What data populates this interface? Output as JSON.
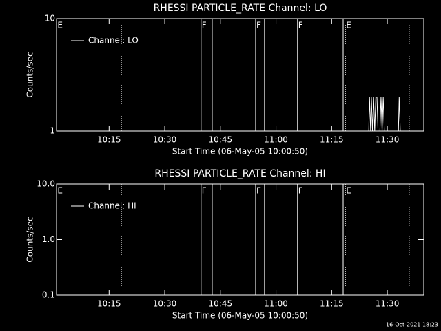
{
  "chart_data": [
    {
      "type": "line",
      "title": "RHESSI PARTICLE_RATE Channel: LO",
      "xlabel": "Start Time (06-May-05 10:00:50)",
      "ylabel": "Counts/sec",
      "log_y": true,
      "ylim": [
        1,
        10
      ],
      "yticks": [
        1,
        10
      ],
      "xlim": [
        0.83,
        99.83
      ],
      "xticks": [
        {
          "value": 15,
          "label": "10:15"
        },
        {
          "value": 30,
          "label": "10:30"
        },
        {
          "value": 45,
          "label": "10:45"
        },
        {
          "value": 60,
          "label": "11:00"
        },
        {
          "value": 75,
          "label": "11:15"
        },
        {
          "value": 90,
          "label": "11:30"
        }
      ],
      "series": [
        {
          "name": "Channel: LO",
          "color": "#ffffff",
          "x": [
            79,
            85.0,
            85.2,
            85.5,
            85.7,
            86.0,
            86.3,
            86.6,
            86.9,
            87.2,
            87.5,
            88.0,
            88.3,
            88.6,
            88.9,
            89.2,
            90,
            93.0,
            93.2,
            93.5,
            95
          ],
          "values": [
            1,
            1,
            2,
            1,
            2,
            1,
            2,
            1,
            2,
            2,
            1,
            1,
            2,
            1,
            2,
            1,
            1,
            1,
            2,
            1,
            1
          ]
        }
      ],
      "vlines": [
        {
          "x": 18.3,
          "style": "dotted"
        },
        {
          "x": 39.8,
          "style": "solid"
        },
        {
          "x": 42.8,
          "style": "solid"
        },
        {
          "x": 54.5,
          "style": "solid"
        },
        {
          "x": 56.9,
          "style": "solid"
        },
        {
          "x": 65.8,
          "style": "solid"
        },
        {
          "x": 78.1,
          "style": "solid"
        },
        {
          "x": 78.7,
          "style": "dotted"
        },
        {
          "x": 95.9,
          "style": "dotted"
        }
      ],
      "flags": [
        {
          "x": 0.9,
          "label": "E"
        },
        {
          "x": 39.8,
          "label": "F"
        },
        {
          "x": 54.5,
          "label": "F"
        },
        {
          "x": 65.8,
          "label": "F"
        },
        {
          "x": 78.7,
          "label": "E"
        }
      ]
    },
    {
      "type": "line",
      "title": "RHESSI PARTICLE_RATE Channel: HI",
      "xlabel": "Start Time (06-May-05 10:00:50)",
      "ylabel": "Counts/sec",
      "log_y": true,
      "ylim": [
        0.1,
        10
      ],
      "yticks": [
        0.1,
        {
          "value": 1,
          "label": "1.0"
        },
        {
          "value": 10,
          "label": "10.0"
        }
      ],
      "xlim": [
        0.83,
        99.83
      ],
      "xticks": [
        {
          "value": 15,
          "label": "10:15"
        },
        {
          "value": 30,
          "label": "10:30"
        },
        {
          "value": 45,
          "label": "10:45"
        },
        {
          "value": 60,
          "label": "11:00"
        },
        {
          "value": 75,
          "label": "11:15"
        },
        {
          "value": 90,
          "label": "11:30"
        }
      ],
      "series": [
        {
          "name": "Channel: HI",
          "color": "#ffffff",
          "x": [],
          "values": []
        }
      ],
      "vlines": [
        {
          "x": 18.3,
          "style": "dotted"
        },
        {
          "x": 39.8,
          "style": "solid"
        },
        {
          "x": 42.8,
          "style": "solid"
        },
        {
          "x": 54.5,
          "style": "solid"
        },
        {
          "x": 56.9,
          "style": "solid"
        },
        {
          "x": 65.8,
          "style": "solid"
        },
        {
          "x": 78.1,
          "style": "solid"
        },
        {
          "x": 78.7,
          "style": "dotted"
        },
        {
          "x": 95.9,
          "style": "dotted"
        }
      ],
      "flags": [
        {
          "x": 0.9,
          "label": "E"
        },
        {
          "x": 39.8,
          "label": "F"
        },
        {
          "x": 54.5,
          "label": "F"
        },
        {
          "x": 65.8,
          "label": "F"
        },
        {
          "x": 78.7,
          "label": "E"
        }
      ]
    }
  ],
  "footer": "16-Oct-2021 18:23"
}
